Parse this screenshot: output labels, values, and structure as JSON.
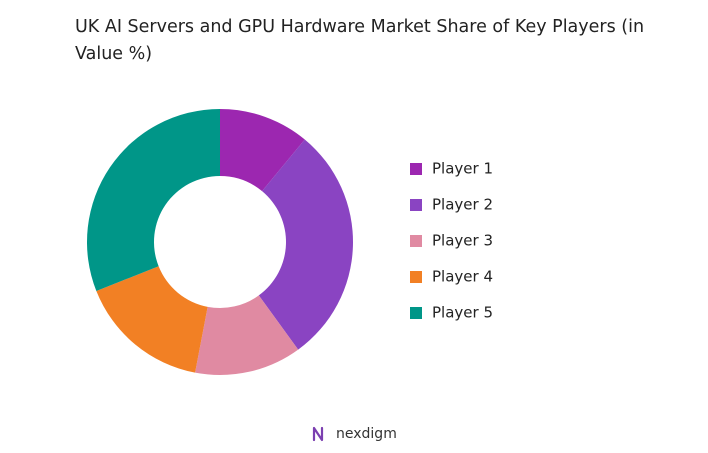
{
  "chart_data": {
    "type": "donut",
    "title": "UK AI Servers and GPU Hardware Market Share of Key Players (in Value %)",
    "categories": [
      "Player 1",
      "Player 2",
      "Player 3",
      "Player 4",
      "Player 5"
    ],
    "values": [
      11,
      29,
      13,
      16,
      31
    ],
    "colors": [
      "#9c27b0",
      "#8a44c2",
      "#e08aa2",
      "#f28024",
      "#009688"
    ],
    "legend": "right"
  },
  "footer": {
    "logo_text": "nexdigm"
  }
}
